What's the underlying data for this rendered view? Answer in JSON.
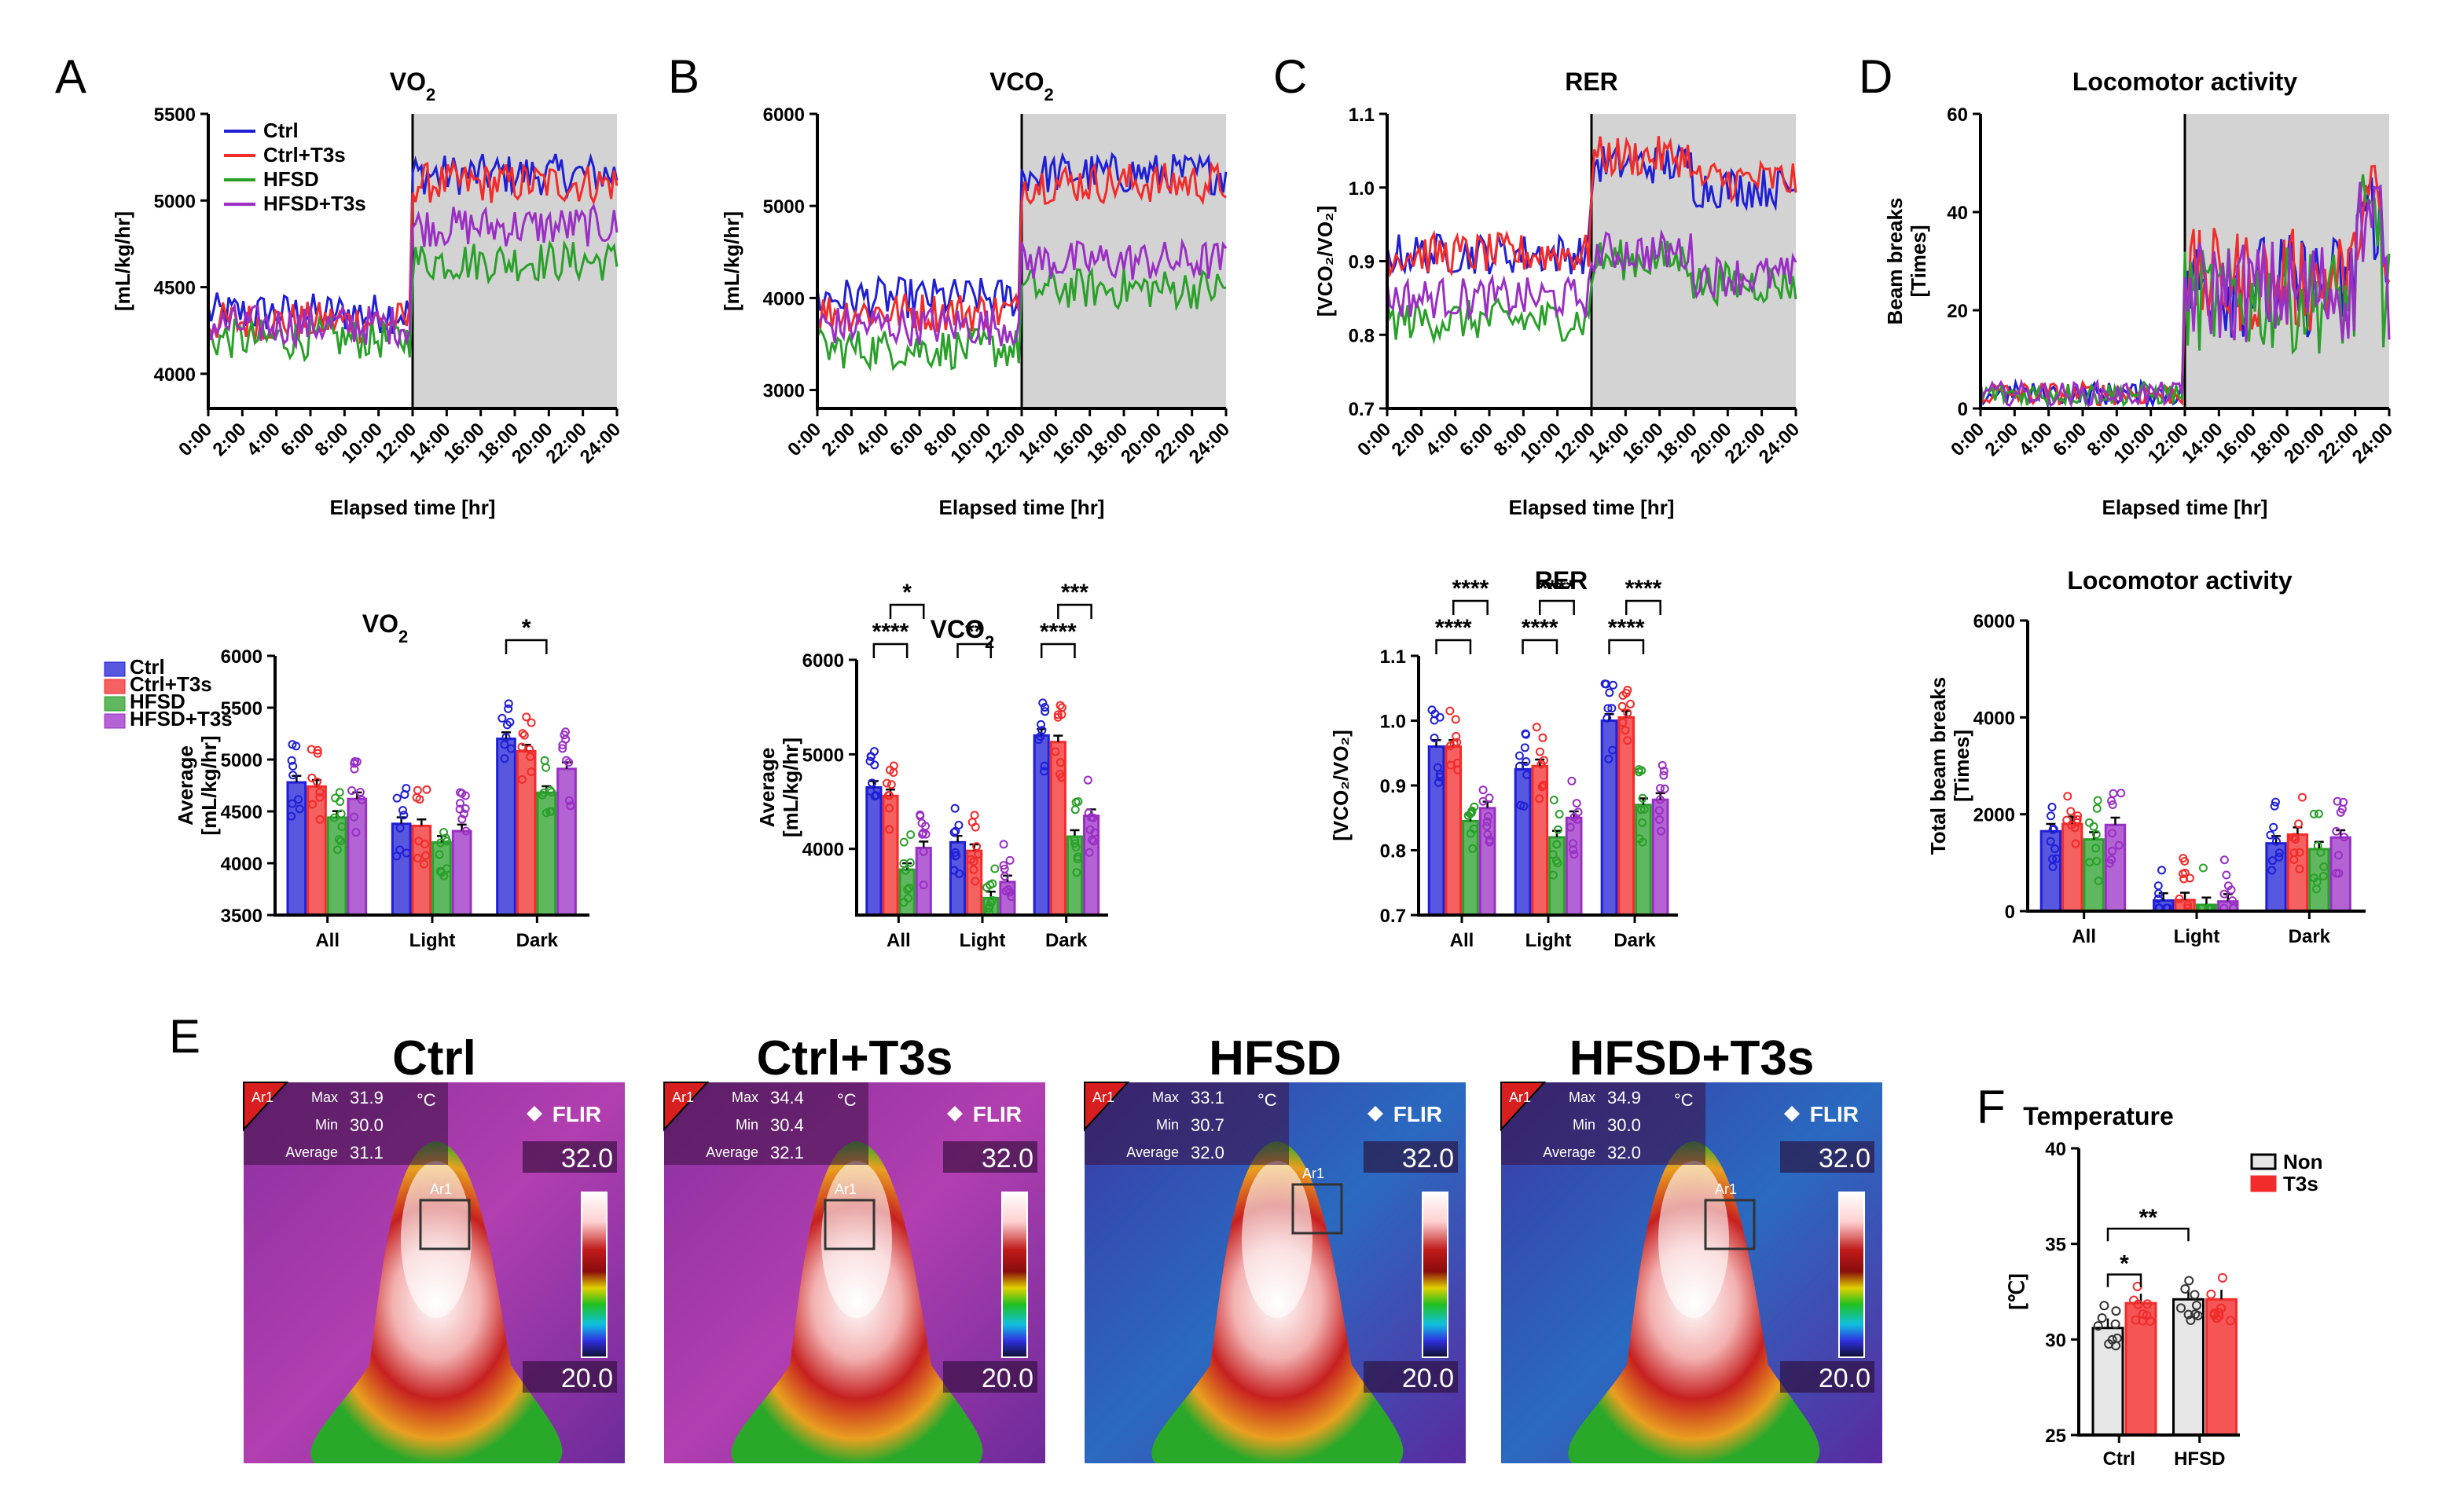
{
  "colors": {
    "ctrl": "#1f1fd6",
    "ctrl_t3s": "#f22b2b",
    "hfsd": "#2aa02a",
    "hfsd_t3s": "#9a2fc4",
    "dark_shade": "#d3d3d3",
    "non_fill": "#e6e6e6"
  },
  "panel_labels": {
    "A": "A",
    "B": "B",
    "C": "C",
    "D": "D",
    "E": "E",
    "F": "F"
  },
  "legend": {
    "ctrl": "Ctrl",
    "ctrl_t3s": "Ctrl+T3s",
    "hfsd": "HFSD",
    "hfsd_t3s": "HFSD+T3s"
  },
  "time_ticks": [
    "0:00",
    "2:00",
    "4:00",
    "6:00",
    "8:00",
    "10:00",
    "12:00",
    "14:00",
    "16:00",
    "18:00",
    "20:00",
    "22:00",
    "24:00"
  ],
  "time_xlabel": "Elapsed time [hr]",
  "bar_groups": [
    "All",
    "Light",
    "Dark"
  ],
  "chart_data": [
    {
      "id": "A",
      "type": "line",
      "title": "VO",
      "title_sub": "2",
      "ylabel": "[mL/kg/hr]",
      "xlabel": "Elapsed time [hr]",
      "ylim": [
        3800,
        5500
      ],
      "yticks": [
        4000,
        4500,
        5000,
        5500
      ],
      "dark_phase_start_hr": 12,
      "series": [
        {
          "name": "Ctrl",
          "level_light": 4350,
          "level_dark": 5150
        },
        {
          "name": "Ctrl+T3s",
          "level_light": 4300,
          "level_dark": 5100
        },
        {
          "name": "HFSD",
          "level_light": 4200,
          "level_dark": 4650
        },
        {
          "name": "HFSD+T3s",
          "level_light": 4280,
          "level_dark": 4850
        }
      ]
    },
    {
      "id": "B",
      "type": "line",
      "title": "VCO",
      "title_sub": "2",
      "ylabel": "[mL/kg/hr]",
      "xlabel": "Elapsed time [hr]",
      "ylim": [
        2800,
        6000
      ],
      "yticks": [
        3000,
        4000,
        5000,
        6000
      ],
      "dark_phase_start_hr": 12,
      "series": [
        {
          "name": "Ctrl",
          "level_light": 4000,
          "level_dark": 5350
        },
        {
          "name": "Ctrl+T3s",
          "level_light": 3850,
          "level_dark": 5250
        },
        {
          "name": "HFSD",
          "level_light": 3450,
          "level_dark": 4100
        },
        {
          "name": "HFSD+T3s",
          "level_light": 3700,
          "level_dark": 4400
        }
      ]
    },
    {
      "id": "C",
      "type": "line",
      "title": "RER",
      "ylabel": "[VCO₂/VO₂]",
      "xlabel": "Elapsed time [hr]",
      "ylim": [
        0.7,
        1.1
      ],
      "yticks": [
        0.7,
        0.8,
        0.9,
        1.0,
        1.1
      ],
      "dark_phase_start_hr": 12,
      "series": [
        {
          "name": "Ctrl",
          "level_light": 0.91,
          "level_dark": 1.0
        },
        {
          "name": "Ctrl+T3s",
          "level_light": 0.91,
          "level_dark": 1.01
        },
        {
          "name": "HFSD",
          "level_light": 0.82,
          "level_dark": 0.87
        },
        {
          "name": "HFSD+T3s",
          "level_light": 0.85,
          "level_dark": 0.88
        }
      ]
    },
    {
      "id": "D",
      "type": "line",
      "title": "Locomotor activity",
      "ylabel": "Beam breaks",
      "ylabel2": "[Times]",
      "xlabel": "Elapsed time [hr]",
      "ylim": [
        0,
        60
      ],
      "yticks": [
        0,
        20,
        40,
        60
      ],
      "dark_phase_start_hr": 12,
      "series": [
        {
          "name": "Ctrl",
          "level_light": 3,
          "level_dark": 25
        },
        {
          "name": "Ctrl+T3s",
          "level_light": 3,
          "level_dark": 26
        },
        {
          "name": "HFSD",
          "level_light": 3,
          "level_dark": 22
        },
        {
          "name": "HFSD+T3s",
          "level_light": 3,
          "level_dark": 24
        }
      ]
    },
    {
      "id": "A2",
      "type": "bar",
      "title": "VO",
      "title_sub": "2",
      "ylabel": "Average",
      "ylabel2": "[mL/kg/hr]",
      "ylim": [
        3500,
        6000
      ],
      "yticks": [
        3500,
        4000,
        4500,
        5000,
        5500,
        6000
      ],
      "categories": [
        "All",
        "Light",
        "Dark"
      ],
      "series": [
        {
          "name": "Ctrl",
          "values": [
            4780,
            4380,
            5200
          ]
        },
        {
          "name": "Ctrl+T3s",
          "values": [
            4740,
            4360,
            5080
          ]
        },
        {
          "name": "HFSD",
          "values": [
            4440,
            4200,
            4680
          ]
        },
        {
          "name": "HFSD+T3s",
          "values": [
            4620,
            4310,
            4910
          ]
        }
      ],
      "significance": [
        {
          "group": 2,
          "from": 0,
          "to": 2,
          "label": "*"
        }
      ]
    },
    {
      "id": "B2",
      "type": "bar",
      "title": "VCO",
      "title_sub": "2",
      "ylabel": "Average",
      "ylabel2": "[mL/kg/hr]",
      "ylim": [
        3300,
        6000
      ],
      "yticks": [
        4000,
        5000,
        6000
      ],
      "categories": [
        "All",
        "Light",
        "Dark"
      ],
      "series": [
        {
          "name": "Ctrl",
          "values": [
            4650,
            4070,
            5200
          ]
        },
        {
          "name": "Ctrl+T3s",
          "values": [
            4560,
            3980,
            5130
          ]
        },
        {
          "name": "HFSD",
          "values": [
            3780,
            3480,
            4130
          ]
        },
        {
          "name": "HFSD+T3s",
          "values": [
            4010,
            3650,
            4350
          ]
        }
      ],
      "significance": [
        {
          "group": 0,
          "from": 0,
          "to": 2,
          "label": "****"
        },
        {
          "group": 0,
          "from": 1,
          "to": 3,
          "label": "*"
        },
        {
          "group": 1,
          "from": 0,
          "to": 2,
          "label": "**"
        },
        {
          "group": 2,
          "from": 0,
          "to": 2,
          "label": "****"
        },
        {
          "group": 2,
          "from": 1,
          "to": 3,
          "label": "***"
        }
      ]
    },
    {
      "id": "C2",
      "type": "bar",
      "title": "RER",
      "ylabel": "[VCO₂/VO₂]",
      "ylim": [
        0.7,
        1.1
      ],
      "yticks": [
        0.7,
        0.8,
        0.9,
        1.0,
        1.1
      ],
      "categories": [
        "All",
        "Light",
        "Dark"
      ],
      "series": [
        {
          "name": "Ctrl",
          "values": [
            0.96,
            0.925,
            1.0
          ]
        },
        {
          "name": "Ctrl+T3s",
          "values": [
            0.96,
            0.93,
            1.005
          ]
        },
        {
          "name": "HFSD",
          "values": [
            0.845,
            0.82,
            0.87
          ]
        },
        {
          "name": "HFSD+T3s",
          "values": [
            0.865,
            0.85,
            0.878
          ]
        }
      ],
      "significance": [
        {
          "group": 0,
          "from": 0,
          "to": 2,
          "label": "****"
        },
        {
          "group": 0,
          "from": 1,
          "to": 3,
          "label": "****"
        },
        {
          "group": 1,
          "from": 0,
          "to": 2,
          "label": "****"
        },
        {
          "group": 1,
          "from": 1,
          "to": 3,
          "label": "****"
        },
        {
          "group": 2,
          "from": 0,
          "to": 2,
          "label": "****"
        },
        {
          "group": 2,
          "from": 1,
          "to": 3,
          "label": "****"
        }
      ]
    },
    {
      "id": "D2",
      "type": "bar",
      "title": "Locomotor activity",
      "ylabel": "Total beam breaks",
      "ylabel2": "[Times]",
      "ylim": [
        0,
        6000
      ],
      "yticks": [
        0,
        2000,
        4000,
        6000
      ],
      "categories": [
        "All",
        "Light",
        "Dark"
      ],
      "series": [
        {
          "name": "Ctrl",
          "values": [
            1650,
            220,
            1400
          ]
        },
        {
          "name": "Ctrl+T3s",
          "values": [
            1800,
            230,
            1580
          ]
        },
        {
          "name": "HFSD",
          "values": [
            1480,
            130,
            1280
          ]
        },
        {
          "name": "HFSD+T3s",
          "values": [
            1780,
            200,
            1520
          ]
        }
      ],
      "significance": []
    },
    {
      "id": "F",
      "type": "bar",
      "title": "Temperature",
      "ylabel": "[℃]",
      "ylim": [
        25,
        40
      ],
      "yticks": [
        25,
        30,
        35,
        40
      ],
      "categories": [
        "Ctrl",
        "HFSD"
      ],
      "series": [
        {
          "name": "Non",
          "values": [
            30.6,
            32.1
          ]
        },
        {
          "name": "T3s",
          "values": [
            31.9,
            32.1
          ]
        }
      ],
      "significance": [
        {
          "label": "*",
          "type": "within_ctrl"
        },
        {
          "label": "**",
          "type": "ctrl_non_vs_hfsd_non"
        }
      ]
    }
  ],
  "thermal": {
    "images": [
      {
        "title": "Ctrl",
        "ar": "Ar1",
        "max_label": "Max",
        "max": "31.9",
        "unit": "°C",
        "min_label": "Min",
        "min": "30.0",
        "avg_label": "Average",
        "avg": "31.1",
        "scale_top": "32.0",
        "scale_bottom": "20.0",
        "brand": "FLIR",
        "box_label": "Ar1"
      },
      {
        "title": "Ctrl+T3s",
        "ar": "Ar1",
        "max_label": "Max",
        "max": "34.4",
        "unit": "°C",
        "min_label": "Min",
        "min": "30.4",
        "avg_label": "Average",
        "avg": "32.1",
        "scale_top": "32.0",
        "scale_bottom": "20.0",
        "brand": "FLIR",
        "box_label": "Ar1"
      },
      {
        "title": "HFSD",
        "ar": "Ar1",
        "max_label": "Max",
        "max": "33.1",
        "unit": "°C",
        "min_label": "Min",
        "min": "30.7",
        "avg_label": "Average",
        "avg": "32.0",
        "scale_top": "32.0",
        "scale_bottom": "20.0",
        "brand": "FLIR",
        "box_label": "Ar1"
      },
      {
        "title": "HFSD+T3s",
        "ar": "Ar1",
        "max_label": "Max",
        "max": "34.9",
        "unit": "°C",
        "min_label": "Min",
        "min": "30.0",
        "avg_label": "Average",
        "avg": "32.0",
        "scale_top": "32.0",
        "scale_bottom": "20.0",
        "brand": "FLIR",
        "box_label": "Ar1"
      }
    ]
  },
  "legend_F": {
    "non": "Non",
    "t3s": "T3s"
  }
}
